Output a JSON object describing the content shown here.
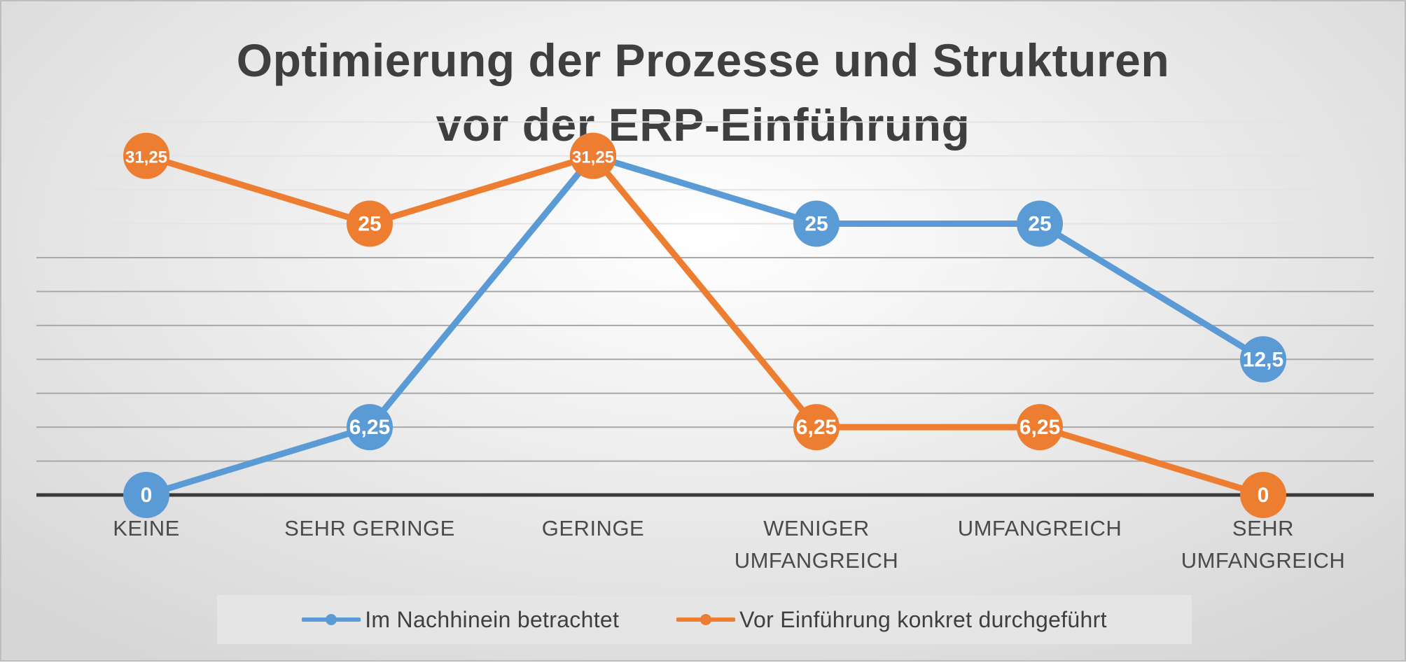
{
  "chart_data": {
    "type": "line",
    "title_lines": [
      "Optimierung der Prozesse und Strukturen",
      "vor der ERP-Einführung"
    ],
    "categories": [
      "KEINE",
      "SEHR GERINGE",
      "GERINGE",
      "WENIGER UMFANGREICH",
      "UMFANGREICH",
      "SEHR UMFANGREICH"
    ],
    "series": [
      {
        "name": "Im Nachhinein betrachtet",
        "color": "#5b9bd5",
        "values": [
          0,
          6.25,
          31.25,
          25,
          25,
          12.5
        ],
        "data_labels": [
          "0",
          "6,25",
          "31,25",
          "25",
          "25",
          "12,5"
        ]
      },
      {
        "name": "Vor Einführung konkret durchgeführt",
        "color": "#ed7d31",
        "values": [
          31.25,
          25,
          31.25,
          6.25,
          6.25,
          0
        ],
        "data_labels": [
          "31,25",
          "25",
          "31,25",
          "6,25",
          "6,25",
          "0"
        ]
      }
    ],
    "ylim": [
      0,
      35
    ],
    "grid": true,
    "y_axis_labels_shown": false,
    "legend_position": "bottom"
  }
}
